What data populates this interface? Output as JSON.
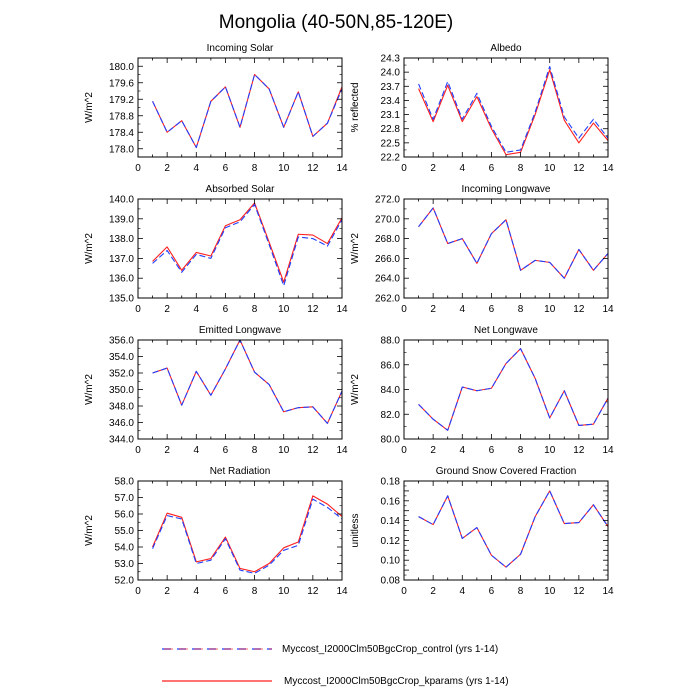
{
  "title": "Mongolia (40-50N,85-120E)",
  "legend": {
    "control_label": "Myccost_I2000Clm50BgcCrop_control (yrs 1-14)",
    "kparams_label": "Myccost_I2000Clm50BgcCrop_kparams (yrs 1-14)"
  },
  "colors": {
    "control": "#1f3fff",
    "kparams": "#ff1f1f",
    "axis": "#000000"
  },
  "chart_data": [
    {
      "type": "line",
      "title": "Incoming Solar",
      "ylabel": "W/m^2",
      "xlim": [
        0,
        14
      ],
      "ylim": [
        177.8,
        180.2
      ],
      "xticks": [
        0,
        2,
        4,
        6,
        8,
        10,
        12,
        14
      ],
      "yticks": [
        178.0,
        178.4,
        178.8,
        179.2,
        179.6,
        180.0
      ],
      "ytick_labels": [
        "178.0",
        "178.4",
        "178.8",
        "179.2",
        "179.6",
        "180.0"
      ],
      "x": [
        1,
        2,
        3,
        4,
        5,
        6,
        7,
        8,
        9,
        10,
        11,
        12,
        13,
        14
      ],
      "series": [
        {
          "name": "control",
          "style": "dashed",
          "values": [
            179.15,
            178.4,
            178.68,
            178.03,
            179.15,
            179.5,
            178.52,
            179.8,
            179.45,
            178.52,
            179.38,
            178.3,
            178.62,
            179.45
          ]
        },
        {
          "name": "kparams",
          "style": "solid",
          "values": [
            179.15,
            178.4,
            178.68,
            178.03,
            179.15,
            179.5,
            178.52,
            179.8,
            179.45,
            178.52,
            179.38,
            178.3,
            178.62,
            179.5
          ]
        }
      ]
    },
    {
      "type": "line",
      "title": "Albedo",
      "ylabel": "% reflected",
      "xlim": [
        0,
        14
      ],
      "ylim": [
        22.2,
        24.3
      ],
      "xticks": [
        0,
        2,
        4,
        6,
        8,
        10,
        12,
        14
      ],
      "yticks": [
        22.2,
        22.5,
        22.8,
        23.1,
        23.4,
        23.7,
        24.0,
        24.3
      ],
      "ytick_labels": [
        "22.2",
        "22.5",
        "22.8",
        "23.1",
        "23.4",
        "23.7",
        "24.0",
        "24.3"
      ],
      "x": [
        1,
        2,
        3,
        4,
        5,
        6,
        7,
        8,
        9,
        10,
        11,
        12,
        13,
        14
      ],
      "series": [
        {
          "name": "control",
          "style": "dashed",
          "values": [
            23.75,
            23.0,
            23.8,
            23.0,
            23.55,
            22.85,
            22.3,
            22.35,
            23.15,
            24.12,
            23.05,
            22.6,
            23.0,
            22.6
          ]
        },
        {
          "name": "kparams",
          "style": "solid",
          "values": [
            23.65,
            22.95,
            23.72,
            22.95,
            23.48,
            22.8,
            22.25,
            22.3,
            23.1,
            24.05,
            22.98,
            22.5,
            22.92,
            22.55
          ]
        }
      ]
    },
    {
      "type": "line",
      "title": "Absorbed Solar",
      "ylabel": "W/m^2",
      "xlim": [
        0,
        14
      ],
      "ylim": [
        135.0,
        140.0
      ],
      "xticks": [
        0,
        2,
        4,
        6,
        8,
        10,
        12,
        14
      ],
      "yticks": [
        135.0,
        136.0,
        137.0,
        138.0,
        139.0,
        140.0
      ],
      "ytick_labels": [
        "135.0",
        "136.0",
        "137.0",
        "138.0",
        "139.0",
        "140.0"
      ],
      "x": [
        1,
        2,
        3,
        4,
        5,
        6,
        7,
        8,
        9,
        10,
        11,
        12,
        13,
        14
      ],
      "series": [
        {
          "name": "control",
          "style": "dashed",
          "values": [
            136.75,
            137.4,
            136.3,
            137.2,
            137.0,
            138.55,
            138.85,
            139.72,
            137.7,
            135.62,
            138.08,
            138.0,
            137.62,
            138.95
          ]
        },
        {
          "name": "kparams",
          "style": "solid",
          "values": [
            136.85,
            137.58,
            136.4,
            137.3,
            137.12,
            138.65,
            138.95,
            139.8,
            137.82,
            135.8,
            138.22,
            138.18,
            137.75,
            139.05
          ]
        }
      ]
    },
    {
      "type": "line",
      "title": "Incoming Longwave",
      "ylabel": "W/m^2",
      "xlim": [
        0,
        14
      ],
      "ylim": [
        262.0,
        272.0
      ],
      "xticks": [
        0,
        2,
        4,
        6,
        8,
        10,
        12,
        14
      ],
      "yticks": [
        262.0,
        264.0,
        266.0,
        268.0,
        270.0,
        272.0
      ],
      "ytick_labels": [
        "262.0",
        "264.0",
        "266.0",
        "268.0",
        "270.0",
        "272.0"
      ],
      "x": [
        1,
        2,
        3,
        4,
        5,
        6,
        7,
        8,
        9,
        10,
        11,
        12,
        13,
        14
      ],
      "series": [
        {
          "name": "control",
          "style": "dashed",
          "values": [
            269.2,
            271.1,
            267.5,
            268.0,
            265.5,
            268.5,
            269.9,
            264.8,
            265.8,
            265.6,
            264.0,
            266.9,
            264.8,
            266.5
          ]
        },
        {
          "name": "kparams",
          "style": "solid",
          "values": [
            269.2,
            271.1,
            267.5,
            268.0,
            265.5,
            268.5,
            269.9,
            264.8,
            265.8,
            265.6,
            264.0,
            266.9,
            264.8,
            266.5
          ]
        }
      ]
    },
    {
      "type": "line",
      "title": "Emitted Longwave",
      "ylabel": "W/m^2",
      "xlim": [
        0,
        14
      ],
      "ylim": [
        344.0,
        356.0
      ],
      "xticks": [
        0,
        2,
        4,
        6,
        8,
        10,
        12,
        14
      ],
      "yticks": [
        344.0,
        346.0,
        348.0,
        350.0,
        352.0,
        354.0,
        356.0
      ],
      "ytick_labels": [
        "344.0",
        "346.0",
        "348.0",
        "350.0",
        "352.0",
        "354.0",
        "356.0"
      ],
      "x": [
        1,
        2,
        3,
        4,
        5,
        6,
        7,
        8,
        9,
        10,
        11,
        12,
        13,
        14
      ],
      "series": [
        {
          "name": "control",
          "style": "dashed",
          "values": [
            352.0,
            352.6,
            348.1,
            352.2,
            349.3,
            352.5,
            356.0,
            352.1,
            350.6,
            347.3,
            347.8,
            347.9,
            345.9,
            349.8
          ]
        },
        {
          "name": "kparams",
          "style": "solid",
          "values": [
            352.0,
            352.6,
            348.1,
            352.2,
            349.3,
            352.5,
            356.0,
            352.1,
            350.6,
            347.3,
            347.8,
            347.9,
            345.9,
            349.8
          ]
        }
      ]
    },
    {
      "type": "line",
      "title": "Net Longwave",
      "ylabel": "W/m^2",
      "xlim": [
        0,
        14
      ],
      "ylim": [
        80.0,
        88.0
      ],
      "xticks": [
        0,
        2,
        4,
        6,
        8,
        10,
        12,
        14
      ],
      "yticks": [
        80.0,
        82.0,
        84.0,
        86.0,
        88.0
      ],
      "ytick_labels": [
        "80.0",
        "82.0",
        "84.0",
        "86.0",
        "88.0"
      ],
      "x": [
        1,
        2,
        3,
        4,
        5,
        6,
        7,
        8,
        9,
        10,
        11,
        12,
        13,
        14
      ],
      "series": [
        {
          "name": "control",
          "style": "dashed",
          "values": [
            82.8,
            81.6,
            80.7,
            84.2,
            83.9,
            84.1,
            86.1,
            87.3,
            84.9,
            81.7,
            83.9,
            81.1,
            81.2,
            83.3
          ]
        },
        {
          "name": "kparams",
          "style": "solid",
          "values": [
            82.8,
            81.6,
            80.7,
            84.2,
            83.9,
            84.1,
            86.1,
            87.3,
            84.9,
            81.7,
            83.9,
            81.1,
            81.2,
            83.3
          ]
        }
      ]
    },
    {
      "type": "line",
      "title": "Net Radiation",
      "ylabel": "W/m^2",
      "xlim": [
        0,
        14
      ],
      "ylim": [
        52.0,
        58.0
      ],
      "xticks": [
        0,
        2,
        4,
        6,
        8,
        10,
        12,
        14
      ],
      "yticks": [
        52.0,
        53.0,
        54.0,
        55.0,
        56.0,
        57.0,
        58.0
      ],
      "ytick_labels": [
        "52.0",
        "53.0",
        "54.0",
        "55.0",
        "56.0",
        "57.0",
        "58.0"
      ],
      "x": [
        1,
        2,
        3,
        4,
        5,
        6,
        7,
        8,
        9,
        10,
        11,
        12,
        13,
        14
      ],
      "series": [
        {
          "name": "control",
          "style": "dashed",
          "values": [
            53.9,
            55.9,
            55.7,
            53.0,
            53.2,
            54.5,
            52.6,
            52.4,
            52.9,
            53.8,
            54.1,
            56.9,
            56.4,
            55.7
          ]
        },
        {
          "name": "kparams",
          "style": "solid",
          "values": [
            54.0,
            56.05,
            55.8,
            53.1,
            53.3,
            54.6,
            52.7,
            52.5,
            53.0,
            53.95,
            54.3,
            57.1,
            56.6,
            55.85
          ]
        }
      ]
    },
    {
      "type": "line",
      "title": "Ground Snow Covered Fraction",
      "ylabel": "unitless",
      "xlim": [
        0,
        14
      ],
      "ylim": [
        0.08,
        0.18
      ],
      "xticks": [
        0,
        2,
        4,
        6,
        8,
        10,
        12,
        14
      ],
      "yticks": [
        0.08,
        0.09,
        0.1,
        0.11,
        0.12,
        0.13,
        0.14,
        0.15,
        0.16,
        0.17,
        0.18
      ],
      "ytick_labels": [
        "0.08",
        "",
        "0.10",
        "",
        "0.12",
        "",
        "0.14",
        "",
        "0.16",
        "",
        "0.18"
      ],
      "x": [
        1,
        2,
        3,
        4,
        5,
        6,
        7,
        8,
        9,
        10,
        11,
        12,
        13,
        14
      ],
      "series": [
        {
          "name": "control",
          "style": "dashed",
          "values": [
            0.144,
            0.136,
            0.165,
            0.122,
            0.133,
            0.105,
            0.093,
            0.106,
            0.144,
            0.17,
            0.137,
            0.138,
            0.156,
            0.134
          ]
        },
        {
          "name": "kparams",
          "style": "solid",
          "values": [
            0.144,
            0.136,
            0.165,
            0.122,
            0.133,
            0.105,
            0.093,
            0.106,
            0.144,
            0.17,
            0.137,
            0.138,
            0.156,
            0.134
          ]
        }
      ]
    }
  ]
}
